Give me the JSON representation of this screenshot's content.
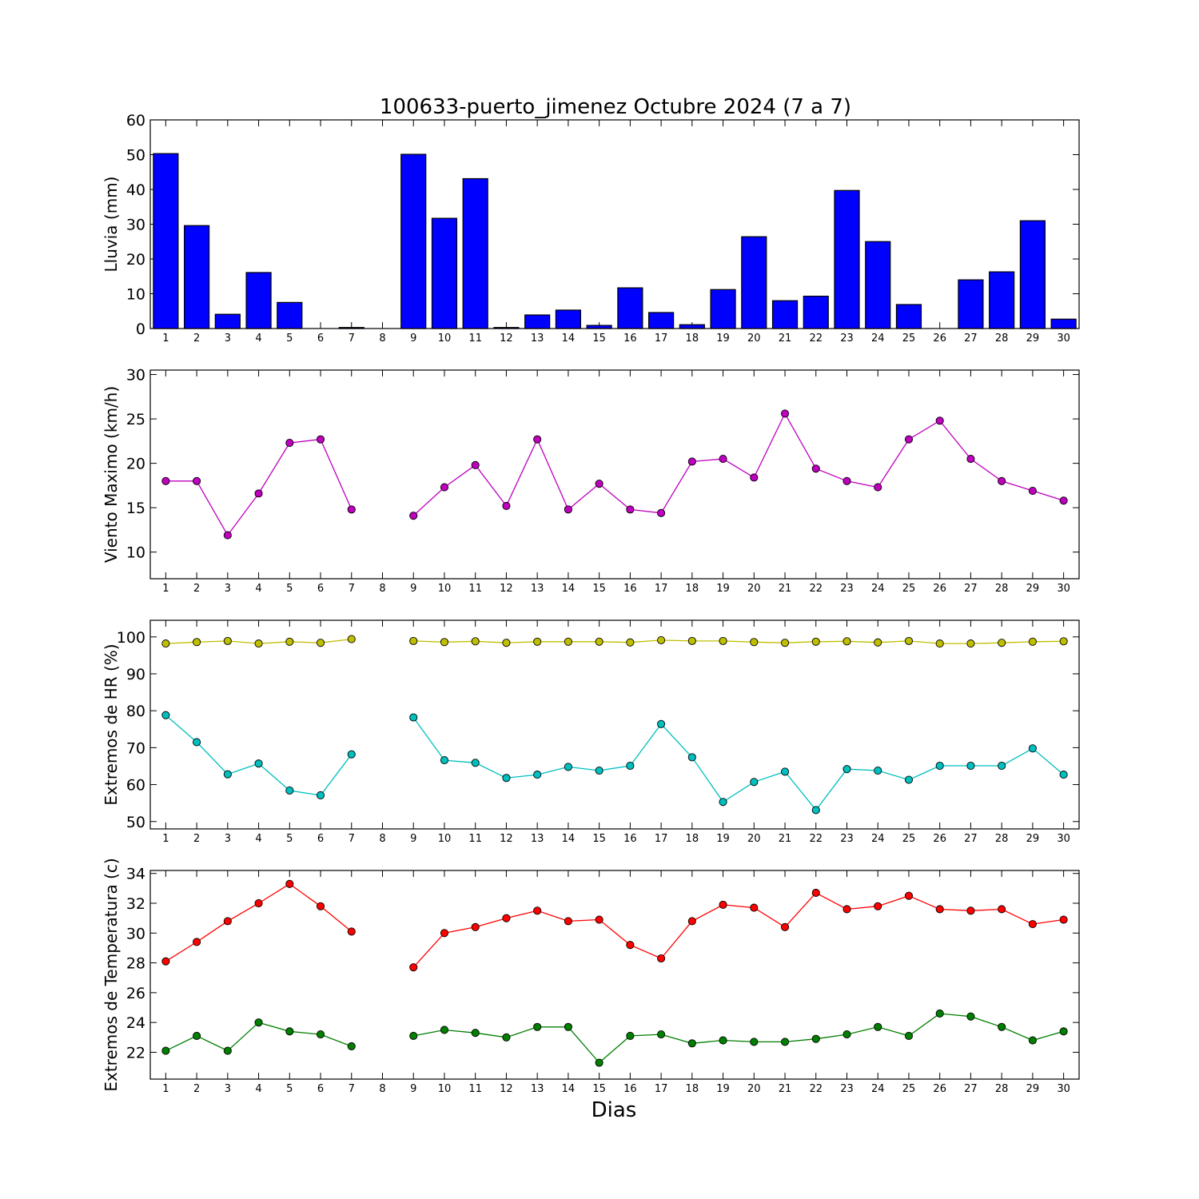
{
  "title": "100633-puerto_jimenez Octubre 2024  (7 a 7)",
  "xlabel": "Dias",
  "colors": {
    "rain": "#0000ff",
    "wind": "#bf00bf",
    "hr_max": "#bfbf00",
    "hr_min": "#00bfbf",
    "t_max": "#ff0000",
    "t_min": "#007f00"
  },
  "chart_data": [
    {
      "type": "bar",
      "ylabel": "Lluvia (mm)",
      "ylim": [
        0,
        60
      ],
      "yticks": [
        0,
        10,
        20,
        30,
        40,
        50,
        60
      ],
      "categories": [
        1,
        2,
        3,
        4,
        5,
        6,
        7,
        8,
        9,
        10,
        11,
        12,
        13,
        14,
        15,
        16,
        17,
        18,
        19,
        20,
        21,
        22,
        23,
        24,
        25,
        26,
        27,
        28,
        29,
        30
      ],
      "xlim": [
        0.5,
        30.5
      ],
      "series": [
        {
          "color": "rain",
          "values": [
            50.3,
            29.6,
            4.1,
            16.1,
            7.5,
            0.0,
            0.3,
            0.0,
            50.1,
            31.7,
            43.1,
            0.3,
            3.9,
            5.3,
            0.9,
            11.7,
            4.6,
            1.1,
            11.2,
            26.4,
            8.0,
            9.3,
            39.7,
            25.0,
            6.9,
            0.0,
            14.0,
            16.3,
            31.0,
            2.7
          ]
        }
      ]
    },
    {
      "type": "line",
      "ylabel": "Viento Maximo (km/h)",
      "ylim": [
        7,
        30.5
      ],
      "yticks": [
        10,
        15,
        20,
        25,
        30
      ],
      "x": [
        1,
        2,
        3,
        4,
        5,
        6,
        7,
        8,
        9,
        10,
        11,
        12,
        13,
        14,
        15,
        16,
        17,
        18,
        19,
        20,
        21,
        22,
        23,
        24,
        25,
        26,
        27,
        28,
        29,
        30
      ],
      "xlim": [
        0.5,
        30.5
      ],
      "series": [
        {
          "color": "wind",
          "values": [
            18.0,
            18.0,
            11.9,
            16.6,
            22.3,
            22.7,
            14.8,
            null,
            14.1,
            17.3,
            19.8,
            15.2,
            22.7,
            14.8,
            17.7,
            14.8,
            14.4,
            20.2,
            20.5,
            18.4,
            25.6,
            19.4,
            18.0,
            17.3,
            22.7,
            24.8,
            20.5,
            18.0,
            16.9,
            15.8
          ]
        }
      ]
    },
    {
      "type": "line",
      "ylabel": "Extremos de HR (%)",
      "ylim": [
        48,
        104.5
      ],
      "yticks": [
        50,
        60,
        70,
        80,
        90,
        100
      ],
      "x": [
        1,
        2,
        3,
        4,
        5,
        6,
        7,
        8,
        9,
        10,
        11,
        12,
        13,
        14,
        15,
        16,
        17,
        18,
        19,
        20,
        21,
        22,
        23,
        24,
        25,
        26,
        27,
        28,
        29,
        30
      ],
      "xlim": [
        0.5,
        30.5
      ],
      "series": [
        {
          "color": "hr_max",
          "values": [
            98.2,
            98.6,
            98.9,
            98.2,
            98.7,
            98.4,
            99.4,
            null,
            98.9,
            98.6,
            98.8,
            98.4,
            98.7,
            98.7,
            98.7,
            98.5,
            99.1,
            98.9,
            98.9,
            98.6,
            98.4,
            98.7,
            98.8,
            98.5,
            98.9,
            98.2,
            98.2,
            98.4,
            98.7,
            98.8
          ]
        },
        {
          "color": "hr_min",
          "values": [
            78.8,
            71.5,
            62.8,
            65.7,
            58.4,
            57.1,
            68.2,
            null,
            78.2,
            66.6,
            65.9,
            61.8,
            62.7,
            64.8,
            63.8,
            65.1,
            76.4,
            67.4,
            55.3,
            60.7,
            63.5,
            53.1,
            64.2,
            63.8,
            61.3,
            65.1,
            65.1,
            65.1,
            69.8,
            62.7
          ]
        }
      ]
    },
    {
      "type": "line",
      "ylabel": "Extremos de Temperatura (c)",
      "ylim": [
        20.2,
        34.2
      ],
      "yticks": [
        22,
        24,
        26,
        28,
        30,
        32,
        34
      ],
      "x": [
        1,
        2,
        3,
        4,
        5,
        6,
        7,
        8,
        9,
        10,
        11,
        12,
        13,
        14,
        15,
        16,
        17,
        18,
        19,
        20,
        21,
        22,
        23,
        24,
        25,
        26,
        27,
        28,
        29,
        30
      ],
      "xlim": [
        0.5,
        30.5
      ],
      "series": [
        {
          "color": "t_max",
          "values": [
            28.1,
            29.4,
            30.8,
            32.0,
            33.3,
            31.8,
            30.1,
            null,
            27.7,
            30.0,
            30.4,
            31.0,
            31.5,
            30.8,
            30.9,
            29.2,
            28.3,
            30.8,
            31.9,
            31.7,
            30.4,
            32.7,
            31.6,
            31.8,
            32.5,
            31.6,
            31.5,
            31.6,
            30.6,
            30.9
          ]
        },
        {
          "color": "t_min",
          "values": [
            22.1,
            23.1,
            22.1,
            24.0,
            23.4,
            23.2,
            22.4,
            null,
            23.1,
            23.5,
            23.3,
            23.0,
            23.7,
            23.7,
            21.3,
            23.1,
            23.2,
            22.6,
            22.8,
            22.7,
            22.7,
            22.9,
            23.2,
            23.7,
            23.1,
            24.6,
            24.4,
            23.7,
            22.8,
            23.4
          ]
        }
      ]
    }
  ]
}
